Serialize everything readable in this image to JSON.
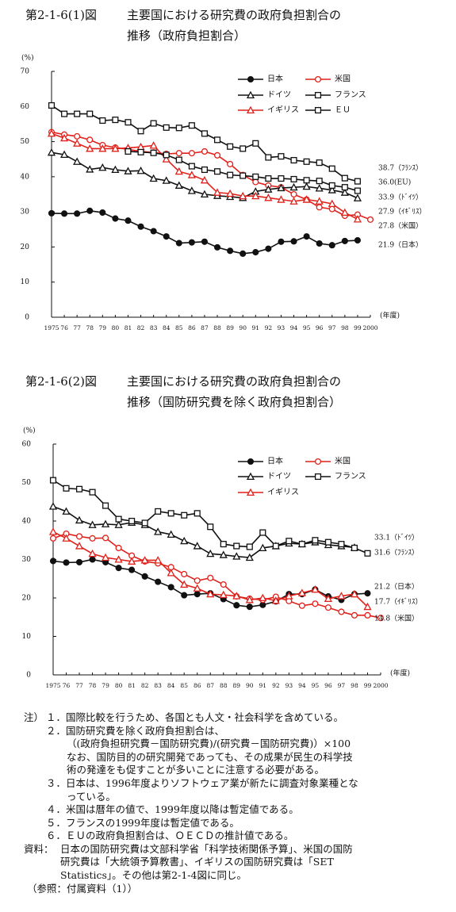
{
  "chart_data": [
    {
      "type": "line",
      "figure_label": "第2-1-6(1)図",
      "title": [
        "主要国における研究費の政府負担割合の",
        "推移（政府負担割合）"
      ],
      "y_label": "(%)",
      "x_label": "(年度)",
      "categories": [
        "1975",
        "76",
        "77",
        "78",
        "79",
        "80",
        "81",
        "82",
        "83",
        "84",
        "85",
        "86",
        "87",
        "88",
        "89",
        "90",
        "91",
        "92",
        "93",
        "94",
        "95",
        "96",
        "97",
        "98",
        "99",
        "2000"
      ],
      "ylim": [
        0,
        70
      ],
      "yticks": [
        0,
        10,
        20,
        30,
        40,
        50,
        60,
        70
      ],
      "series": [
        {
          "name": "日本",
          "color": "#111111",
          "marker": "filled-circle",
          "values": [
            29.6,
            29.5,
            29.5,
            30.3,
            29.8,
            28.1,
            27.5,
            25.8,
            24.5,
            23.0,
            21.1,
            21.3,
            21.5,
            19.9,
            18.9,
            18.1,
            18.5,
            19.5,
            21.5,
            21.6,
            23.0,
            21.0,
            20.5,
            21.7,
            21.9,
            null
          ]
        },
        {
          "name": "米国",
          "color": "#e0201a",
          "marker": "circle",
          "values": [
            52.7,
            52.0,
            51.5,
            50.5,
            49.0,
            48.3,
            47.8,
            47.2,
            46.9,
            46.5,
            46.7,
            46.7,
            47.2,
            46.1,
            43.6,
            40.5,
            38.5,
            37.5,
            37.0,
            35.0,
            33.5,
            31.3,
            30.8,
            28.9,
            29.2,
            27.8
          ]
        },
        {
          "name": "ドイツ",
          "color": "#111111",
          "marker": "triangle",
          "values": [
            46.9,
            46.3,
            44.3,
            42.1,
            42.6,
            42.0,
            41.6,
            41.7,
            39.5,
            38.9,
            37.5,
            36.0,
            35.0,
            34.6,
            34.3,
            34.0,
            35.8,
            36.4,
            36.8,
            37.0,
            37.2,
            36.7,
            36.2,
            35.5,
            33.9,
            null
          ]
        },
        {
          "name": "フランス",
          "color": "#111111",
          "marker": "square",
          "values": [
            60.3,
            57.9,
            57.9,
            57.9,
            56.0,
            56.2,
            55.5,
            53.0,
            55.2,
            54.0,
            53.9,
            54.6,
            52.3,
            50.5,
            48.6,
            48.0,
            49.5,
            45.5,
            45.8,
            44.7,
            44.3,
            44.0,
            42.3,
            39.6,
            38.7,
            null
          ]
        },
        {
          "name": "イギリス",
          "color": "#e0201a",
          "marker": "triangle",
          "values": [
            52.3,
            51.0,
            49.5,
            48.0,
            48.0,
            48.0,
            48.2,
            48.5,
            48.9,
            45.0,
            41.5,
            40.5,
            39.0,
            35.5,
            35.2,
            34.5,
            34.5,
            34.0,
            33.5,
            33.0,
            33.5,
            33.0,
            32.3,
            29.8,
            27.9,
            null
          ]
        },
        {
          "name": "ＥＵ",
          "color": "#111111",
          "marker": "square",
          "values": [
            null,
            null,
            null,
            null,
            null,
            null,
            47.2,
            47.0,
            46.8,
            46.2,
            44.8,
            43.0,
            42.0,
            41.5,
            40.5,
            40.3,
            40.0,
            39.5,
            39.5,
            39.3,
            39.0,
            38.8,
            37.5,
            37.0,
            36.0,
            null
          ]
        }
      ],
      "annotations": [
        "38.7（ﾌﾗﾝｽ）",
        "36.0(EU)",
        "33.9（ﾄﾞｲﾂ）",
        "27.9（ｲｷﾞﾘｽ）",
        "27.8（米国）",
        "21.9（日本）"
      ]
    },
    {
      "type": "line",
      "figure_label": "第2-1-6(2)図",
      "title": [
        "主要国における研究費の政府負担割合の",
        "推移（国防研究費を除く政府負担割合）"
      ],
      "y_label": "(%)",
      "x_label": "(年度)",
      "categories": [
        "1975",
        "76",
        "77",
        "78",
        "79",
        "80",
        "81",
        "82",
        "83",
        "84",
        "85",
        "86",
        "87",
        "88",
        "89",
        "90",
        "91",
        "92",
        "93",
        "94",
        "95",
        "96",
        "97",
        "98",
        "99",
        "2000"
      ],
      "ylim": [
        0,
        60
      ],
      "yticks": [
        0,
        10,
        20,
        30,
        40,
        50,
        60
      ],
      "series": [
        {
          "name": "日本",
          "color": "#111111",
          "marker": "filled-circle",
          "values": [
            29.6,
            29.2,
            29.3,
            30.0,
            29.3,
            27.8,
            27.3,
            25.6,
            24.2,
            22.8,
            20.7,
            21.0,
            21.2,
            19.7,
            18.1,
            17.7,
            18.2,
            19.1,
            21.0,
            21.0,
            22.2,
            20.4,
            19.5,
            21.0,
            21.2,
            null
          ]
        },
        {
          "name": "米国",
          "color": "#e0201a",
          "marker": "circle",
          "values": [
            35.5,
            36.7,
            36.0,
            35.5,
            35.6,
            33.0,
            31.0,
            29.5,
            29.0,
            28.0,
            26.2,
            24.5,
            25.2,
            23.5,
            20.4,
            19.8,
            19.5,
            20.3,
            19.2,
            18.0,
            18.5,
            17.5,
            16.4,
            15.5,
            15.5,
            14.8
          ]
        },
        {
          "name": "ドイツ",
          "color": "#111111",
          "marker": "triangle",
          "values": [
            43.8,
            42.5,
            40.2,
            39.0,
            39.2,
            39.0,
            39.6,
            39.0,
            37.2,
            36.5,
            34.8,
            33.5,
            31.5,
            31.2,
            30.8,
            30.5,
            33.0,
            33.5,
            34.2,
            34.0,
            34.5,
            33.8,
            33.5,
            33.1,
            null,
            null
          ]
        },
        {
          "name": "フランス",
          "color": "#111111",
          "marker": "square",
          "values": [
            50.6,
            48.5,
            48.3,
            47.5,
            44.0,
            40.5,
            40.0,
            39.5,
            42.5,
            42.0,
            41.5,
            42.0,
            38.5,
            34.0,
            33.5,
            33.3,
            37.0,
            33.5,
            34.8,
            34.0,
            35.0,
            34.5,
            34.0,
            33.0,
            31.6,
            null
          ]
        },
        {
          "name": "イギリス",
          "color": "#e0201a",
          "marker": "triangle",
          "values": [
            37.2,
            35.5,
            33.5,
            31.5,
            30.5,
            30.0,
            29.5,
            29.8,
            29.8,
            26.5,
            23.5,
            22.5,
            21.0,
            20.8,
            20.5,
            19.5,
            20.0,
            19.3,
            20.5,
            21.3,
            22.2,
            19.8,
            20.5,
            21.0,
            17.7,
            null
          ]
        }
      ],
      "annotations": [
        "33.1（ﾄﾞｲﾂ）",
        "31.6（ﾌﾗﾝｽ）",
        "21.2（日本）",
        "17.7（ｲｷﾞﾘｽ）",
        "14.8（米国）"
      ]
    }
  ],
  "notes": {
    "label": "注）",
    "lines": [
      "１．国際比較を行うため、各国とも人文・社会科学を含めている。",
      "２．国防研究費を除く政府負担割合は、",
      "（(政府負担研究費－国防研究費)/(研究費－国防研究費)）×100",
      "なお、国防目的の研究開発であっても、その成果が民生の科学技",
      "術の発達をも促すことが多いことに注意する必要がある。",
      "３．日本は、1996年度よりソフトウェア業が新たに調査対象業種とな",
      "っている。",
      "４．米国は暦年の値で、1999年度以降は暫定値である。",
      "５．フランスの1999年度は暫定値である。",
      "６．ＥＵの政府負担割合は、ＯＥＣＤの推計値である。"
    ]
  },
  "source": {
    "label": "資料：",
    "lines": [
      "日本の国防研究費は文部科学省「科学技術関係予算」、米国の国防",
      "研究費は「大統領予算教書」、イギリスの国防研究費は「SET",
      "Statistics」。その他は第2-1-4図に同じ。"
    ]
  },
  "reference": "（参照：付属資料（1））"
}
